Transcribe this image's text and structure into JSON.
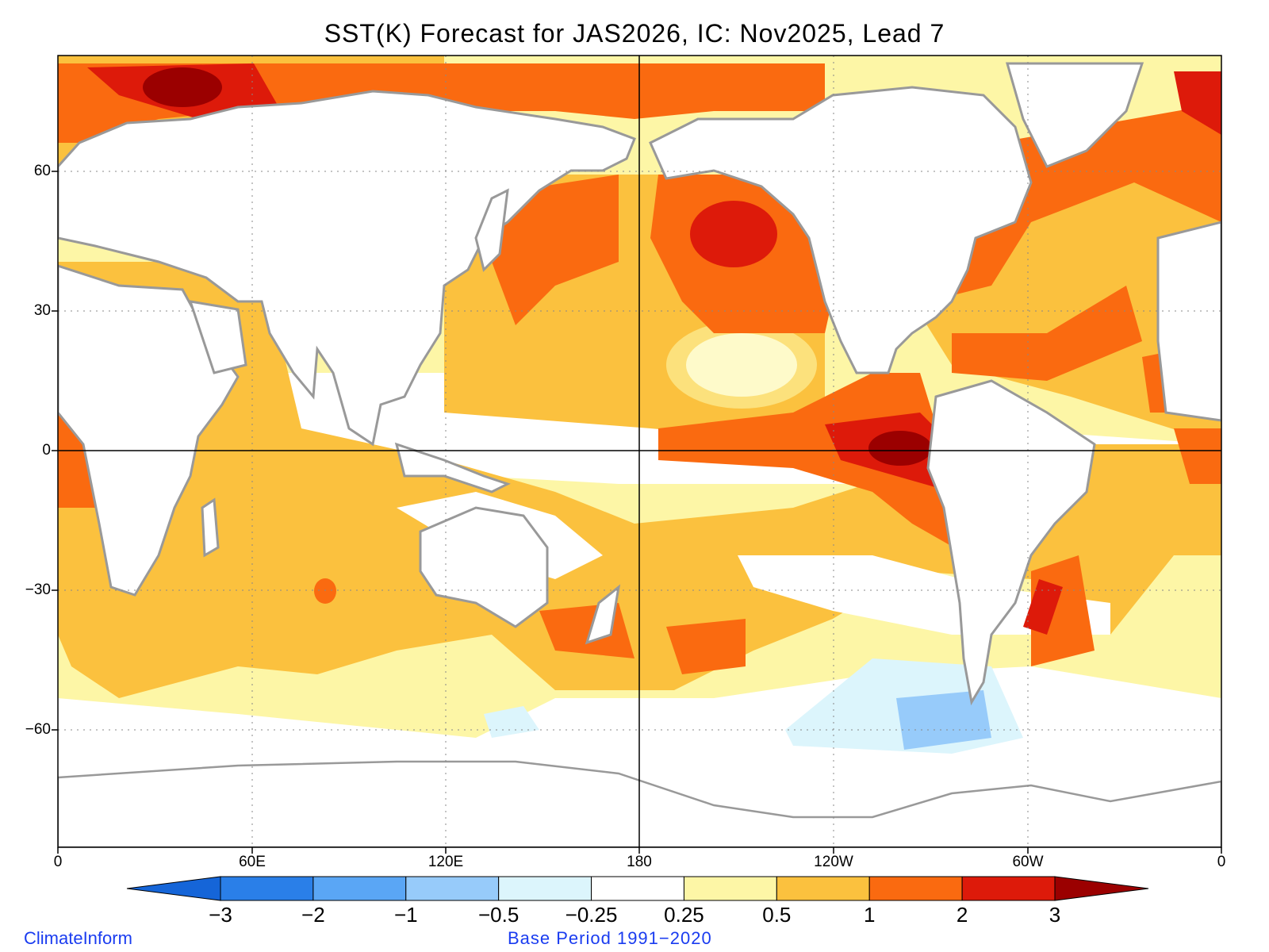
{
  "title": "SST(K) Forecast for JAS2026, IC: Nov2025, Lead 7",
  "map": {
    "variable": "SST anomaly (K)",
    "lon_ticks": [
      "0",
      "60E",
      "120E",
      "180",
      "120W",
      "60W",
      "0"
    ],
    "lat_ticks": [
      "60",
      "30",
      "0",
      "−30",
      "−60"
    ],
    "grid": "dotted"
  },
  "colorbar": {
    "levels": [
      "−3",
      "−2",
      "−1",
      "−0.5",
      "−0.25",
      "0.25",
      "0.5",
      "1",
      "2",
      "3"
    ],
    "colors": [
      "#1565d8",
      "#2a7fe8",
      "#5aa6f5",
      "#97cbfa",
      "#dcf5fc",
      "#ffffff",
      "#fdf6a6",
      "#fbc13e",
      "#fa6a10",
      "#dd1a0a",
      "#9b0000"
    ]
  },
  "footer": {
    "credit": "ClimateInform",
    "base_period": "Base Period 1991−2020"
  }
}
